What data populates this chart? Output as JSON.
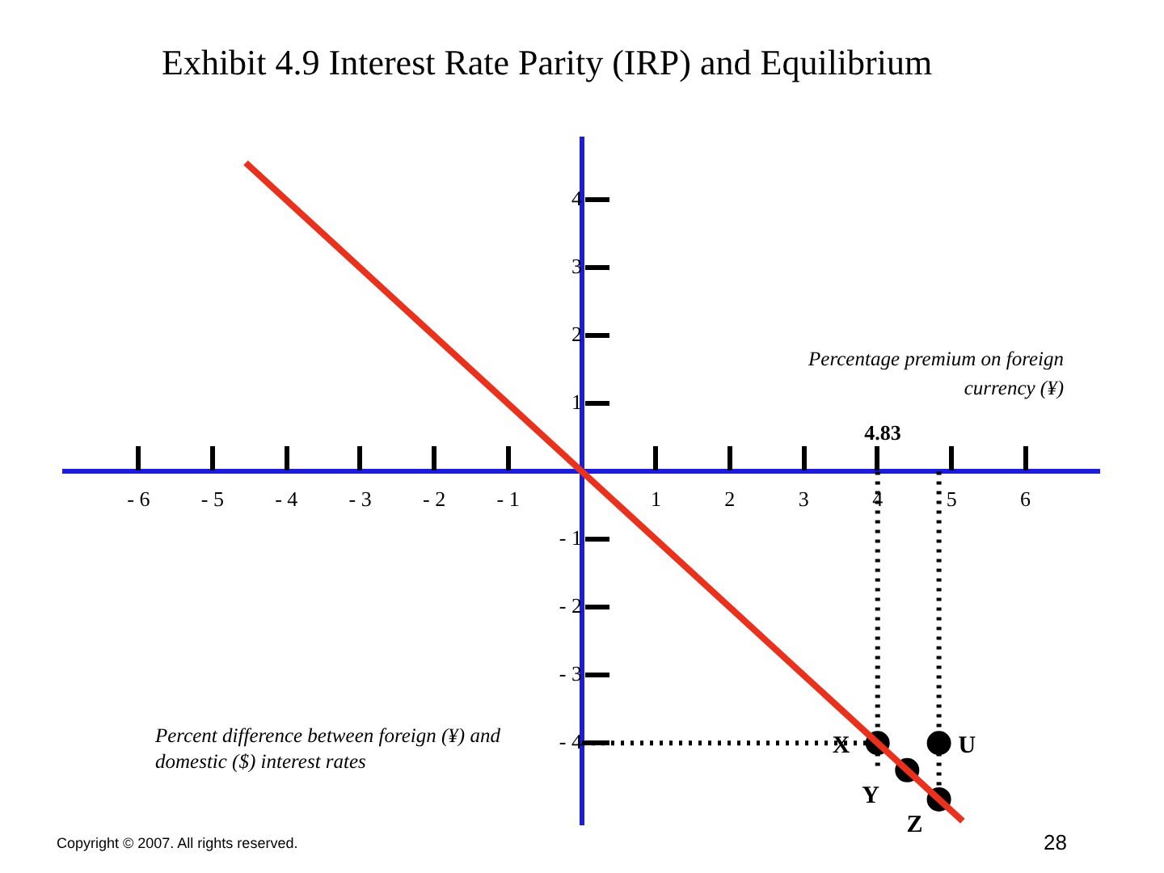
{
  "chart_data": {
    "type": "line",
    "title": "Exhibit 4.9  Interest Rate Parity (IRP) and Equilibrium",
    "xlabel": "Percent difference between foreign (¥) and domestic ($) interest rates",
    "ylabel": "Percentage premium on foreign currency (¥)",
    "xlim": [
      -7,
      7
    ],
    "ylim": [
      -5.2,
      4.9
    ],
    "xticks": [
      -6,
      -5,
      -4,
      -3,
      -2,
      -1,
      1,
      2,
      3,
      4,
      5,
      6
    ],
    "yticks": [
      -4,
      -3,
      -2,
      -1,
      1,
      2,
      3,
      4
    ],
    "grid": false,
    "legend": false,
    "series": [
      {
        "color": "#e8321e",
        "x": [
          -4.55,
          5.15
        ],
        "values": [
          4.55,
          -5.15
        ],
        "marker": "none",
        "line_style": "solid"
      },
      {
        "type": "line",
        "color": "#000000",
        "x": [
          4,
          4
        ],
        "values": [
          0,
          -4.4
        ],
        "marker": "none",
        "line_style": "dotted"
      },
      {
        "type": "line",
        "color": "#000000",
        "x": [
          4.83,
          4.83
        ],
        "values": [
          0,
          -4.83
        ],
        "marker": "none",
        "line_style": "dotted"
      },
      {
        "type": "line",
        "color": "#000000",
        "x": [
          0,
          4
        ],
        "values": [
          -4,
          -4
        ],
        "marker": "none",
        "line_style": "dotted"
      },
      {
        "type": "scatter",
        "color": "#000000",
        "x": [
          4,
          4.83,
          4.4,
          4.83
        ],
        "values": [
          -4,
          -4,
          -4.4,
          -4.83
        ],
        "marker": "circle"
      }
    ],
    "annotations": [
      "4.83",
      {
        "text": "X",
        "x": 4,
        "y": -4
      },
      {
        "text": "U",
        "x": 4.83,
        "y": -4
      },
      {
        "text": "Y",
        "x": 4.4,
        "y": -4.4
      },
      {
        "text": "Z",
        "x": 4.83,
        "y": -4.83
      },
      "Copyright © 2007. All rights reserved.",
      "28"
    ]
  }
}
